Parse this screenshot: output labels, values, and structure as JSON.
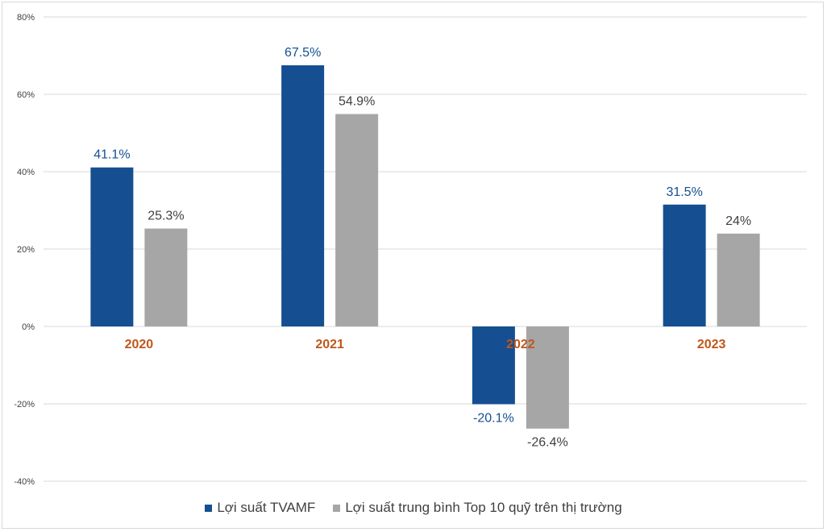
{
  "chart_data": {
    "type": "bar",
    "categories": [
      "2020",
      "2021",
      "2022",
      "2023"
    ],
    "series": [
      {
        "name": "Lợi suất TVAMF",
        "values": [
          41.1,
          67.5,
          -20.1,
          31.5
        ],
        "labels": [
          "41.1%",
          "67.5%",
          "-20.1%",
          "31.5%"
        ],
        "color": "#154f91"
      },
      {
        "name": "Lợi suất trung bình Top 10 quỹ trên thị trường",
        "values": [
          25.3,
          54.9,
          -26.4,
          24.0
        ],
        "labels": [
          "25.3%",
          "54.9%",
          "-26.4%",
          "24%"
        ],
        "color": "#a6a6a6"
      }
    ],
    "ylim": [
      -40,
      80
    ],
    "yticks": [
      80,
      60,
      40,
      20,
      0,
      -20,
      -40
    ],
    "ytick_labels": [
      "80%",
      "60%",
      "40%",
      "20%",
      "0%",
      "-20%",
      "-40%"
    ],
    "grid": true,
    "legend_position": "bottom",
    "category_label_color": "#c0561a",
    "series_label_colors": [
      "#154f91",
      "#404040"
    ]
  }
}
